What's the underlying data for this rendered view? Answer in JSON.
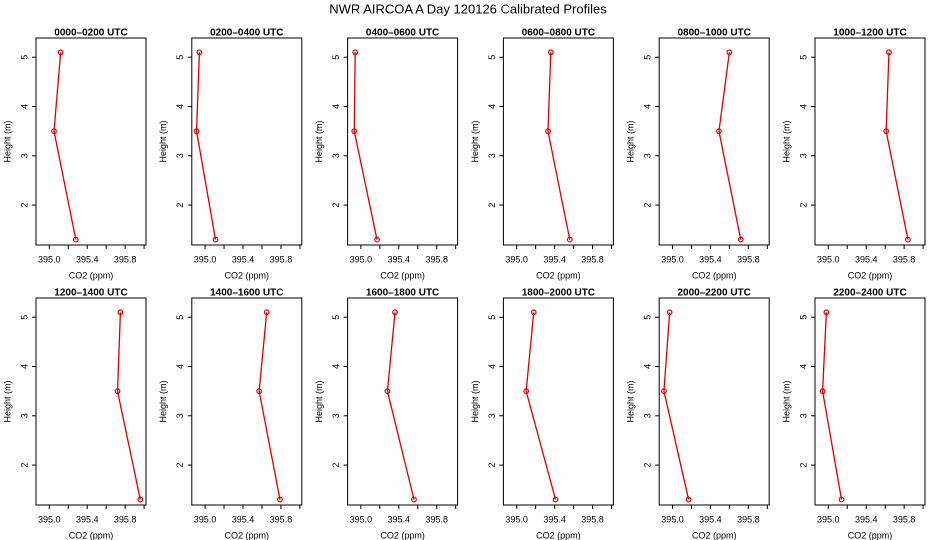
{
  "title": "NWR AIRCOA A  Day 120126  Calibrated Profiles",
  "chart_data": [
    {
      "type": "line",
      "title": "0000–0200 UTC",
      "xlabel": "CO2 (ppm)",
      "ylabel": "Height (m)",
      "series": [
        {
          "color": "#dd0000",
          "x": [
            395.12,
            395.05,
            395.28
          ],
          "values": [
            5.1,
            3.5,
            1.3
          ]
        }
      ],
      "xlim": [
        394.86,
        396.02
      ],
      "xticks": [
        {
          "value": 395.0,
          "label": "395.0"
        },
        {
          "value": 395.4,
          "label": "395.4"
        },
        {
          "value": 395.8,
          "label": "395.8"
        }
      ],
      "xminor_ticks": [
        395.2,
        395.6,
        396.0
      ],
      "ylim": [
        1.19,
        5.39
      ],
      "yticks": [
        2,
        3,
        4,
        5
      ]
    },
    {
      "type": "line",
      "title": "0200–0400 UTC",
      "xlabel": "CO2 (ppm)",
      "ylabel": "Height (m)",
      "series": [
        {
          "color": "#dd0000",
          "x": [
            394.94,
            394.91,
            395.11
          ],
          "values": [
            5.1,
            3.5,
            1.3
          ]
        }
      ],
      "xlim": [
        394.86,
        396.02
      ],
      "xticks": [
        {
          "value": 395.0,
          "label": "395.0"
        },
        {
          "value": 395.4,
          "label": "395.4"
        },
        {
          "value": 395.8,
          "label": "395.8"
        }
      ],
      "xminor_ticks": [
        395.2,
        395.6,
        396.0
      ],
      "ylim": [
        1.19,
        5.39
      ],
      "yticks": [
        2,
        3,
        4,
        5
      ]
    },
    {
      "type": "line",
      "title": "0400–0600 UTC",
      "xlabel": "CO2 (ppm)",
      "ylabel": "Height (m)",
      "series": [
        {
          "color": "#dd0000",
          "x": [
            394.94,
            394.93,
            395.17
          ],
          "values": [
            5.1,
            3.5,
            1.3
          ]
        }
      ],
      "xlim": [
        394.86,
        396.02
      ],
      "xticks": [
        {
          "value": 395.0,
          "label": "395.0"
        },
        {
          "value": 395.4,
          "label": "395.4"
        },
        {
          "value": 395.8,
          "label": "395.8"
        }
      ],
      "xminor_ticks": [
        395.2,
        395.6,
        396.0
      ],
      "ylim": [
        1.19,
        5.39
      ],
      "yticks": [
        2,
        3,
        4,
        5
      ]
    },
    {
      "type": "line",
      "title": "0600–0800 UTC",
      "xlabel": "CO2 (ppm)",
      "ylabel": "Height (m)",
      "series": [
        {
          "color": "#dd0000",
          "x": [
            395.36,
            395.33,
            395.56
          ],
          "values": [
            5.1,
            3.5,
            1.3
          ]
        }
      ],
      "xlim": [
        394.86,
        396.02
      ],
      "xticks": [
        {
          "value": 395.0,
          "label": "395.0"
        },
        {
          "value": 395.4,
          "label": "395.4"
        },
        {
          "value": 395.8,
          "label": "395.8"
        }
      ],
      "xminor_ticks": [
        395.2,
        395.6,
        396.0
      ],
      "ylim": [
        1.19,
        5.39
      ],
      "yticks": [
        2,
        3,
        4,
        5
      ]
    },
    {
      "type": "line",
      "title": "0800–1000 UTC",
      "xlabel": "CO2 (ppm)",
      "ylabel": "Height (m)",
      "series": [
        {
          "color": "#dd0000",
          "x": [
            395.6,
            395.49,
            395.72
          ],
          "values": [
            5.1,
            3.5,
            1.3
          ]
        }
      ],
      "xlim": [
        394.86,
        396.02
      ],
      "xticks": [
        {
          "value": 395.0,
          "label": "395.0"
        },
        {
          "value": 395.4,
          "label": "395.4"
        },
        {
          "value": 395.8,
          "label": "395.8"
        }
      ],
      "xminor_ticks": [
        395.2,
        395.6,
        396.0
      ],
      "ylim": [
        1.19,
        5.39
      ],
      "yticks": [
        2,
        3,
        4,
        5
      ]
    },
    {
      "type": "line",
      "title": "1000–1200 UTC",
      "xlabel": "CO2 (ppm)",
      "ylabel": "Height (m)",
      "series": [
        {
          "color": "#dd0000",
          "x": [
            395.64,
            395.61,
            395.84
          ],
          "values": [
            5.1,
            3.5,
            1.3
          ]
        }
      ],
      "xlim": [
        394.86,
        396.02
      ],
      "xticks": [
        {
          "value": 395.0,
          "label": "395.0"
        },
        {
          "value": 395.4,
          "label": "395.4"
        },
        {
          "value": 395.8,
          "label": "395.8"
        }
      ],
      "xminor_ticks": [
        395.2,
        395.6,
        396.0
      ],
      "ylim": [
        1.19,
        5.39
      ],
      "yticks": [
        2,
        3,
        4,
        5
      ]
    },
    {
      "type": "line",
      "title": "1200–1400 UTC",
      "xlabel": "CO2 (ppm)",
      "ylabel": "Height (m)",
      "series": [
        {
          "color": "#dd0000",
          "x": [
            395.75,
            395.72,
            395.96
          ],
          "values": [
            5.1,
            3.5,
            1.3
          ]
        }
      ],
      "xlim": [
        394.86,
        396.02
      ],
      "xticks": [
        {
          "value": 395.0,
          "label": "395.0"
        },
        {
          "value": 395.4,
          "label": "395.4"
        },
        {
          "value": 395.8,
          "label": "395.8"
        }
      ],
      "xminor_ticks": [
        395.2,
        395.6,
        396.0
      ],
      "ylim": [
        1.19,
        5.39
      ],
      "yticks": [
        2,
        3,
        4,
        5
      ]
    },
    {
      "type": "line",
      "title": "1400–1600 UTC",
      "xlabel": "CO2 (ppm)",
      "ylabel": "Height (m)",
      "series": [
        {
          "color": "#dd0000",
          "x": [
            395.65,
            395.57,
            395.79
          ],
          "values": [
            5.1,
            3.5,
            1.3
          ]
        }
      ],
      "xlim": [
        394.86,
        396.02
      ],
      "xticks": [
        {
          "value": 395.0,
          "label": "395.0"
        },
        {
          "value": 395.4,
          "label": "395.4"
        },
        {
          "value": 395.8,
          "label": "395.8"
        }
      ],
      "xminor_ticks": [
        395.2,
        395.6,
        396.0
      ],
      "ylim": [
        1.19,
        5.39
      ],
      "yticks": [
        2,
        3,
        4,
        5
      ]
    },
    {
      "type": "line",
      "title": "1600–1800 UTC",
      "xlabel": "CO2 (ppm)",
      "ylabel": "Height (m)",
      "series": [
        {
          "color": "#dd0000",
          "x": [
            395.36,
            395.28,
            395.56
          ],
          "values": [
            5.1,
            3.5,
            1.3
          ]
        }
      ],
      "xlim": [
        394.86,
        396.02
      ],
      "xticks": [
        {
          "value": 395.0,
          "label": "395.0"
        },
        {
          "value": 395.4,
          "label": "395.4"
        },
        {
          "value": 395.8,
          "label": "395.8"
        }
      ],
      "xminor_ticks": [
        395.2,
        395.6,
        396.0
      ],
      "ylim": [
        1.19,
        5.39
      ],
      "yticks": [
        2,
        3,
        4,
        5
      ]
    },
    {
      "type": "line",
      "title": "1800–2000 UTC",
      "xlabel": "CO2 (ppm)",
      "ylabel": "Height (m)",
      "series": [
        {
          "color": "#dd0000",
          "x": [
            395.18,
            395.1,
            395.41
          ],
          "values": [
            5.1,
            3.5,
            1.3
          ]
        }
      ],
      "xlim": [
        394.86,
        396.02
      ],
      "xticks": [
        {
          "value": 395.0,
          "label": "395.0"
        },
        {
          "value": 395.4,
          "label": "395.4"
        },
        {
          "value": 395.8,
          "label": "395.8"
        }
      ],
      "xminor_ticks": [
        395.2,
        395.6,
        396.0
      ],
      "ylim": [
        1.19,
        5.39
      ],
      "yticks": [
        2,
        3,
        4,
        5
      ]
    },
    {
      "type": "line",
      "title": "2000–2200 UTC",
      "xlabel": "CO2 (ppm)",
      "ylabel": "Height (m)",
      "series": [
        {
          "color": "#dd0000",
          "x": [
            394.97,
            394.91,
            395.17
          ],
          "values": [
            5.1,
            3.5,
            1.3
          ]
        }
      ],
      "xlim": [
        394.86,
        396.02
      ],
      "xticks": [
        {
          "value": 395.0,
          "label": "395.0"
        },
        {
          "value": 395.4,
          "label": "395.4"
        },
        {
          "value": 395.8,
          "label": "395.8"
        }
      ],
      "xminor_ticks": [
        395.2,
        395.6,
        396.0
      ],
      "ylim": [
        1.19,
        5.39
      ],
      "yticks": [
        2,
        3,
        4,
        5
      ]
    },
    {
      "type": "line",
      "title": "2200–2400 UTC",
      "xlabel": "CO2 (ppm)",
      "ylabel": "Height (m)",
      "series": [
        {
          "color": "#dd0000",
          "x": [
            394.98,
            394.94,
            395.14
          ],
          "values": [
            5.1,
            3.5,
            1.3
          ]
        }
      ],
      "xlim": [
        394.86,
        396.02
      ],
      "xticks": [
        {
          "value": 395.0,
          "label": "395.0"
        },
        {
          "value": 395.4,
          "label": "395.4"
        },
        {
          "value": 395.8,
          "label": "395.8"
        }
      ],
      "xminor_ticks": [
        395.2,
        395.6,
        396.0
      ],
      "ylim": [
        1.19,
        5.39
      ],
      "yticks": [
        2,
        3,
        4,
        5
      ]
    }
  ]
}
